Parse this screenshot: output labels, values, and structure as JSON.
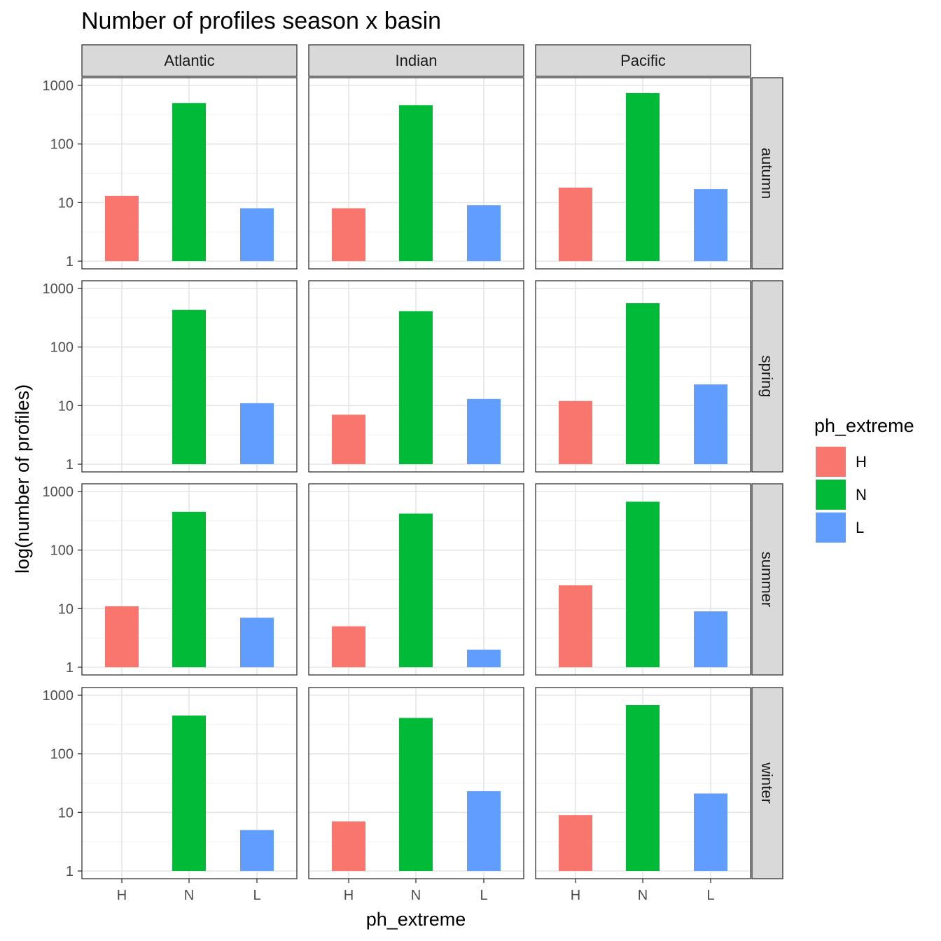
{
  "chart_data": {
    "type": "bar",
    "title": "Number of profiles season x basin",
    "xlabel": "ph_extreme",
    "ylabel": "log(number of profiles)",
    "y_scale": "log10",
    "ylim": [
      1,
      1000
    ],
    "y_ticks": [
      1,
      10,
      100,
      1000
    ],
    "y_tick_labels": [
      "1",
      "10",
      "100",
      "1000"
    ],
    "categories": [
      "H",
      "N",
      "L"
    ],
    "columns": [
      "Atlantic",
      "Indian",
      "Pacific"
    ],
    "rows": [
      "autumn",
      "spring",
      "summer",
      "winter"
    ],
    "legend": {
      "title": "ph_extreme",
      "position": "right",
      "entries": [
        {
          "label": "H",
          "color": "#F8766D"
        },
        {
          "label": "N",
          "color": "#00BA38"
        },
        {
          "label": "L",
          "color": "#619CFF"
        }
      ]
    },
    "values": {
      "autumn": {
        "Atlantic": {
          "H": 13,
          "N": 500,
          "L": 8
        },
        "Indian": {
          "H": 8,
          "N": 460,
          "L": 9
        },
        "Pacific": {
          "H": 18,
          "N": 740,
          "L": 17
        }
      },
      "spring": {
        "Atlantic": {
          "H": null,
          "N": 430,
          "L": 11
        },
        "Indian": {
          "H": 7,
          "N": 410,
          "L": 13
        },
        "Pacific": {
          "H": 12,
          "N": 560,
          "L": 23
        }
      },
      "summer": {
        "Atlantic": {
          "H": 11,
          "N": 450,
          "L": 7
        },
        "Indian": {
          "H": 5,
          "N": 420,
          "L": 2
        },
        "Pacific": {
          "H": 25,
          "N": 670,
          "L": 9
        }
      },
      "winter": {
        "Atlantic": {
          "H": null,
          "N": 450,
          "L": 5
        },
        "Indian": {
          "H": 7,
          "N": 410,
          "L": 23
        },
        "Pacific": {
          "H": 9,
          "N": 680,
          "L": 21
        }
      }
    },
    "grid": true
  }
}
